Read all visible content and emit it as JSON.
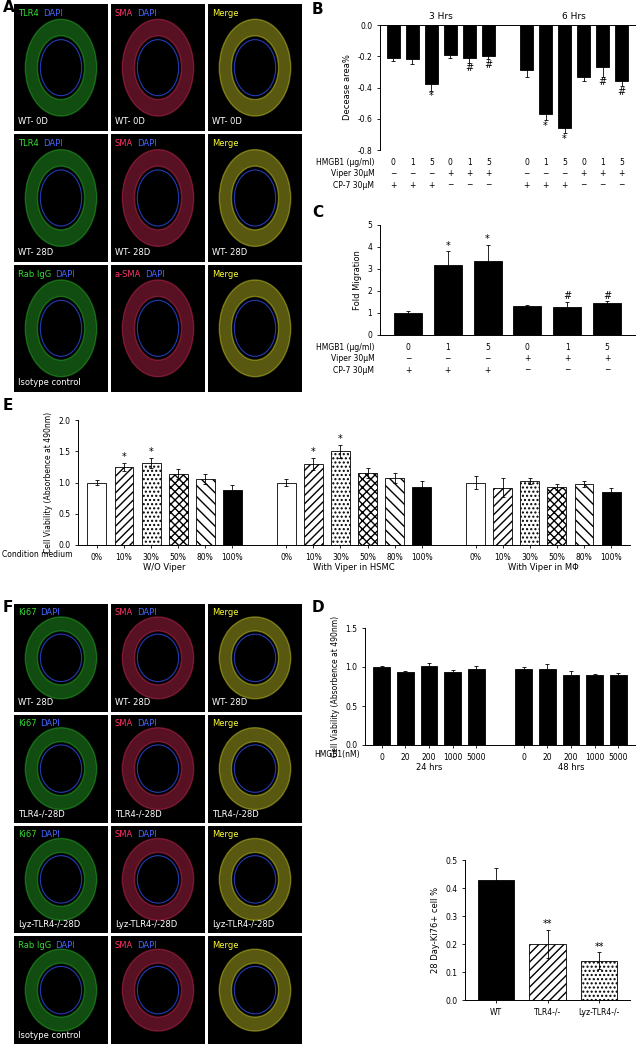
{
  "image_panels": [
    {
      "panel": "A",
      "rows": [
        [
          {
            "channels": [
              {
                "text": "TLR4",
                "color": "#33dd33"
              },
              {
                "text": "DAPI",
                "color": "#4466ff"
              }
            ],
            "sample": "WT- 0D"
          },
          {
            "channels": [
              {
                "text": "SMA",
                "color": "#ff3366"
              },
              {
                "text": "DAPI",
                "color": "#4466ff"
              }
            ],
            "sample": "WT- 0D"
          },
          {
            "channels": [
              {
                "text": "Merge",
                "color": "#ffff33"
              }
            ],
            "sample": "WT- 0D"
          }
        ],
        [
          {
            "channels": [
              {
                "text": "TLR4",
                "color": "#33dd33"
              },
              {
                "text": "DAPI",
                "color": "#4466ff"
              }
            ],
            "sample": "WT- 28D"
          },
          {
            "channels": [
              {
                "text": "SMA",
                "color": "#ff3366"
              },
              {
                "text": "DAPI",
                "color": "#4466ff"
              }
            ],
            "sample": "WT- 28D"
          },
          {
            "channels": [
              {
                "text": "Merge",
                "color": "#ffff33"
              }
            ],
            "sample": "WT- 28D"
          }
        ],
        [
          {
            "channels": [
              {
                "text": "Rab IgG",
                "color": "#33dd33"
              },
              {
                "text": "DAPI",
                "color": "#4466ff"
              }
            ],
            "sample": "Isotype control"
          },
          {
            "channels": [
              {
                "text": "a-SMA",
                "color": "#ff3366"
              },
              {
                "text": "DAPI",
                "color": "#4466ff"
              }
            ],
            "sample": null
          },
          {
            "channels": [
              {
                "text": "Merge",
                "color": "#ffff33"
              }
            ],
            "sample": null
          }
        ]
      ]
    },
    {
      "panel": "F",
      "rows": [
        [
          {
            "channels": [
              {
                "text": "Ki67",
                "color": "#33dd33"
              },
              {
                "text": "DAPI",
                "color": "#4466ff"
              }
            ],
            "sample": "WT- 28D"
          },
          {
            "channels": [
              {
                "text": "SMA",
                "color": "#ff3366"
              },
              {
                "text": "DAPI",
                "color": "#4466ff"
              }
            ],
            "sample": "WT- 28D"
          },
          {
            "channels": [
              {
                "text": "Merge",
                "color": "#ffff33"
              }
            ],
            "sample": "WT- 28D"
          }
        ],
        [
          {
            "channels": [
              {
                "text": "Ki67",
                "color": "#33dd33"
              },
              {
                "text": "DAPI",
                "color": "#4466ff"
              }
            ],
            "sample": "TLR4-/-28D"
          },
          {
            "channels": [
              {
                "text": "SMA",
                "color": "#ff3366"
              },
              {
                "text": "DAPI",
                "color": "#4466ff"
              }
            ],
            "sample": "TLR4-/-28D"
          },
          {
            "channels": [
              {
                "text": "Merge",
                "color": "#ffff33"
              }
            ],
            "sample": "TLR4-/-28D"
          }
        ],
        [
          {
            "channels": [
              {
                "text": "Ki67",
                "color": "#33dd33"
              },
              {
                "text": "DAPI",
                "color": "#4466ff"
              }
            ],
            "sample": "Lyz-TLR4-/-28D"
          },
          {
            "channels": [
              {
                "text": "SMA",
                "color": "#ff3366"
              },
              {
                "text": "DAPI",
                "color": "#4466ff"
              }
            ],
            "sample": "Lyz-TLR4-/-28D"
          },
          {
            "channels": [
              {
                "text": "Merge",
                "color": "#ffff33"
              }
            ],
            "sample": "Lyz-TLR4-/-28D"
          }
        ],
        [
          {
            "channels": [
              {
                "text": "Rab IgG",
                "color": "#33dd33"
              },
              {
                "text": "DAPI",
                "color": "#4466ff"
              }
            ],
            "sample": "Isotype control"
          },
          {
            "channels": [
              {
                "text": "SMA",
                "color": "#ff3366"
              },
              {
                "text": "DAPI",
                "color": "#4466ff"
              }
            ],
            "sample": null
          },
          {
            "channels": [
              {
                "text": "Merge",
                "color": "#ffff33"
              }
            ],
            "sample": null
          }
        ]
      ]
    }
  ],
  "chart_data": [
    {
      "panel": "B",
      "type": "bar",
      "ylabel": "Decease area%",
      "ylim": [
        -0.8,
        0
      ],
      "yticks": [
        -0.8,
        -0.6,
        -0.4,
        -0.2,
        {
          "value": 0,
          "label": "0.0"
        }
      ],
      "color": "#000000",
      "groups": [
        {
          "name": "3 Hrs",
          "values": [
            -0.21,
            -0.22,
            -0.38,
            -0.19,
            -0.21,
            -0.2
          ],
          "errors": [
            0.02,
            0.03,
            0.04,
            0.02,
            0.03,
            0.02
          ],
          "significance": [
            null,
            null,
            "*",
            null,
            "#",
            "#"
          ]
        },
        {
          "name": "6 Hrs",
          "values": [
            -0.29,
            -0.57,
            -0.66,
            -0.33,
            -0.27,
            -0.36
          ],
          "errors": [
            0.04,
            0.04,
            0.03,
            0.03,
            0.06,
            0.03
          ],
          "significance": [
            null,
            "*",
            "*",
            null,
            "#",
            "#"
          ]
        }
      ],
      "conditions": [
        {
          "name": "HMGB1 (μg/ml)",
          "values": [
            "0",
            "1",
            "5",
            "0",
            "1",
            "5",
            "0",
            "1",
            "5",
            "0",
            "1",
            "5"
          ]
        },
        {
          "name": "Viper 30μM",
          "values": [
            "−",
            "−",
            "−",
            "+",
            "+",
            "+",
            "−",
            "−",
            "−",
            "+",
            "+",
            "+"
          ]
        },
        {
          "name": "CP-7 30μM",
          "values": [
            "+",
            "+",
            "+",
            "−",
            "−",
            "−",
            "+",
            "+",
            "+",
            "−",
            "−",
            "−"
          ]
        }
      ]
    },
    {
      "panel": "C",
      "type": "bar",
      "ylabel": "Fold Migration",
      "ylim": [
        0,
        5
      ],
      "yticks": [
        0,
        1,
        2,
        3,
        4,
        5
      ],
      "color": "#000000",
      "values": [
        1.0,
        3.2,
        3.35,
        1.3,
        1.25,
        1.45
      ],
      "errors": [
        0.08,
        0.6,
        0.75,
        0.08,
        0.25,
        0.08
      ],
      "significance": [
        null,
        "*",
        "*",
        null,
        "#",
        "#"
      ],
      "conditions": [
        {
          "name": "HMGB1 (μg/ml)",
          "values": [
            "0",
            "1",
            "5",
            "0",
            "1",
            "5"
          ]
        },
        {
          "name": "Viper 30μM",
          "values": [
            "−",
            "−",
            "−",
            "+",
            "+",
            "+"
          ]
        },
        {
          "name": "CP-7 30μM",
          "values": [
            "+",
            "+",
            "+",
            "−",
            "−",
            "−"
          ]
        }
      ]
    },
    {
      "panel": "E",
      "type": "bar",
      "ylabel": "Cell Viability (Absorbence at 490nm)",
      "xlabel": "Condition medium",
      "ylim": [
        0,
        2
      ],
      "yticks": [
        {
          "value": 0,
          "label": "0.0"
        },
        0.5,
        {
          "value": 1,
          "label": "1.0"
        },
        1.5,
        {
          "value": 2,
          "label": "2.0"
        }
      ],
      "categories": [
        "0%",
        "10%",
        "30%",
        "50%",
        "80%",
        "100%"
      ],
      "colors": [
        "#ffffff",
        "#ffffff",
        "#ffffff",
        "#ffffff",
        "#ffffff",
        "#000000"
      ],
      "groups": [
        {
          "name": "W/O Viper",
          "values": [
            1.0,
            1.25,
            1.32,
            1.14,
            1.06,
            0.88
          ],
          "errors": [
            0.04,
            0.06,
            0.08,
            0.08,
            0.08,
            0.08
          ],
          "significance": [
            null,
            "*",
            "*",
            null,
            null,
            null
          ]
        },
        {
          "name": "With Viper in HSMC",
          "values": [
            1.0,
            1.3,
            1.5,
            1.15,
            1.07,
            0.93
          ],
          "errors": [
            0.05,
            0.1,
            0.1,
            0.08,
            0.08,
            0.1
          ],
          "significance": [
            null,
            "*",
            "*",
            null,
            null,
            null
          ]
        },
        {
          "name": "With Viper in MΦ",
          "values": [
            1.0,
            0.92,
            1.03,
            0.93,
            0.98,
            0.85
          ],
          "errors": [
            0.1,
            0.15,
            0.05,
            0.05,
            0.05,
            0.07
          ],
          "significance": [
            null,
            null,
            null,
            null,
            null,
            null
          ]
        }
      ]
    },
    {
      "panel": "D",
      "type": "bar",
      "ylabel": "Cell Viability (Absorbence at 490nm)",
      "xlabel": "HMGB1(nM)",
      "ylim": [
        0,
        1.5
      ],
      "yticks": [
        {
          "value": 0,
          "label": "0.0"
        },
        0.5,
        {
          "value": 1,
          "label": "1.0"
        },
        1.5
      ],
      "categories": [
        "0",
        "20",
        "200",
        "1000",
        "5000"
      ],
      "color": "#000000",
      "groups": [
        {
          "name": "24 hrs",
          "values": [
            1.0,
            0.93,
            1.01,
            0.93,
            0.97
          ],
          "errors": [
            0.01,
            0.02,
            0.04,
            0.03,
            0.04
          ]
        },
        {
          "name": "48 hrs",
          "values": [
            0.98,
            0.98,
            0.9,
            0.9,
            0.9
          ],
          "errors": [
            0.02,
            0.06,
            0.05,
            0.01,
            0.02
          ]
        }
      ]
    },
    {
      "panel": "F",
      "type": "bar",
      "ylabel": "28 Day-Ki76+ cell %",
      "ylim": [
        0,
        0.5
      ],
      "yticks": [
        {
          "value": 0,
          "label": "0.0"
        },
        0.1,
        0.2,
        0.3,
        0.4,
        0.5
      ],
      "categories": [
        "WT",
        "TLR4-/-",
        "Lyz-TLR4-/-"
      ],
      "values": [
        0.43,
        0.2,
        0.14
      ],
      "errors": [
        0.04,
        0.05,
        0.03
      ],
      "significance": [
        null,
        "**",
        "**"
      ],
      "colors": [
        "#000000",
        "#ffffff",
        "#ffffff"
      ]
    }
  ]
}
